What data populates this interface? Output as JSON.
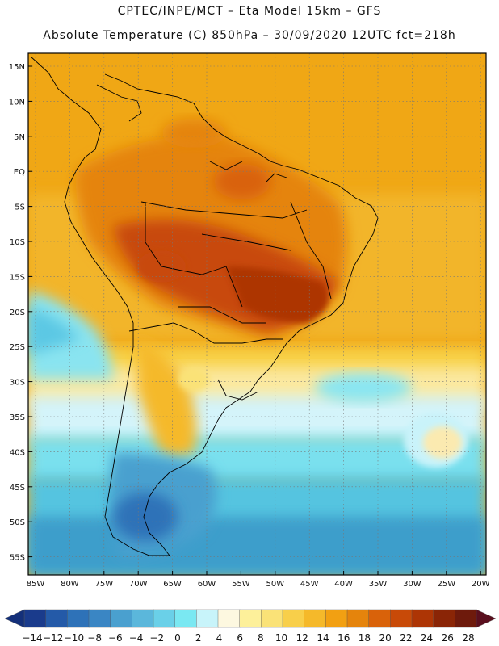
{
  "header": {
    "line1": "CPTEC/INPE/MCT –  Eta Model 15km – GFS",
    "line2": "Absolute Temperature (C) 850hPa – 30/09/2020 12UTC fct=218h"
  },
  "map": {
    "lat_labels": [
      "15N",
      "10N",
      "5N",
      "EQ",
      "5S",
      "10S",
      "15S",
      "20S",
      "25S",
      "30S",
      "35S",
      "40S",
      "45S",
      "50S",
      "55S"
    ],
    "lon_labels": [
      "85W",
      "80W",
      "75W",
      "70W",
      "65W",
      "60W",
      "55W",
      "50W",
      "45W",
      "40W",
      "35W",
      "30W",
      "25W",
      "20W"
    ]
  },
  "colorbar": {
    "colors": [
      "#1a3b8c",
      "#245aa8",
      "#2e72b8",
      "#3a86c4",
      "#4aa0cf",
      "#5bb7db",
      "#6ad0e8",
      "#7ae8f2",
      "#c8f4fa",
      "#fdf8e0",
      "#fdf09a",
      "#fae277",
      "#f8cf4a",
      "#f5b92a",
      "#f2a012",
      "#e5840c",
      "#d9620a",
      "#c84a08",
      "#ad3505",
      "#8a2506",
      "#6e1a0c"
    ],
    "labels": [
      "-14",
      "-12",
      "-10",
      "-8",
      "-6",
      "-4",
      "-2",
      "0",
      "2",
      "4",
      "6",
      "8",
      "10",
      "12",
      "14",
      "16",
      "18",
      "20",
      "22",
      "24",
      "26",
      "28"
    ]
  }
}
